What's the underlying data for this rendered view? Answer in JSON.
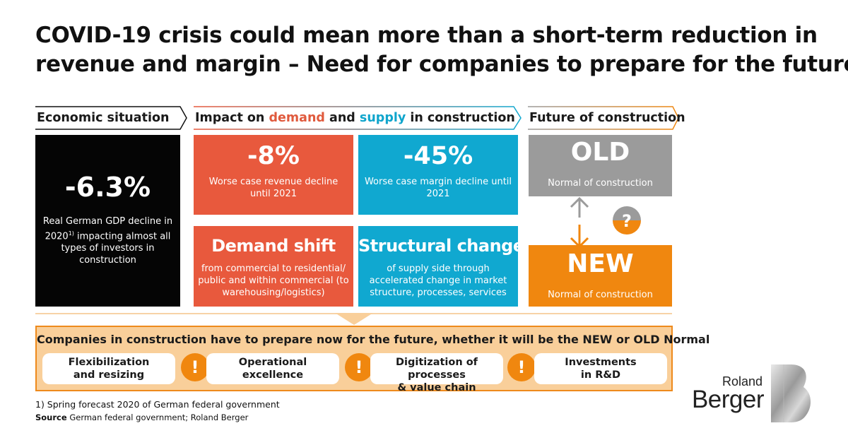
{
  "title": {
    "line1": "COVID-19 crisis could mean more than a short-term reduction in",
    "line2": "revenue and margin – Need for companies to prepare for the future"
  },
  "headers": {
    "economic": "Economic situation",
    "impact_pre": "Impact on ",
    "impact_demand": "demand",
    "impact_and": " and ",
    "impact_supply": "supply",
    "impact_post": " in construction",
    "future": "Future of construction"
  },
  "economic_box": {
    "value": "-6.3%",
    "desc_a": "Real German GDP decline in 2020",
    "desc_sup": "1)",
    "desc_b": " impacting almost all types of investors in construction"
  },
  "revenue_box": {
    "value": "-8%",
    "desc": "Worse case revenue decline until 2021"
  },
  "margin_box": {
    "value": "-45%",
    "desc": "Worse case margin decline until 2021"
  },
  "demand_box": {
    "value": "Demand shift",
    "desc": "from commercial to residential/ public and within commercial (to warehousing/logistics)"
  },
  "structural_box": {
    "value": "Structural change",
    "desc": "of supply side through accelerated change in market structure, processes, services"
  },
  "old_box": {
    "value": "OLD",
    "desc": "Normal of construction"
  },
  "new_box": {
    "value": "NEW",
    "desc": "Normal of construction"
  },
  "question_mark": "?",
  "panel": {
    "title": "Companies in construction have to prepare now for the future, whether it will be the NEW or OLD Normal",
    "items": [
      {
        "line1": "Flexibilization",
        "line2": "and resizing"
      },
      {
        "line1": "Operational",
        "line2": "excellence"
      },
      {
        "line1": "Digitization of processes",
        "line2": "& value chain"
      },
      {
        "line1": "Investments",
        "line2": "in R&D"
      }
    ],
    "exclamation": "!"
  },
  "footnote": "1) Spring forecast 2020 of German federal government",
  "source": {
    "label": "Source",
    "text": " German federal government; Roland Berger"
  },
  "logo": {
    "line1": "Roland",
    "line2": "Berger"
  },
  "colors": {
    "red": "#e8593d",
    "blue": "#10a8d0",
    "orange": "#f0870f",
    "grey": "#9b9b9b",
    "black": "#050505",
    "panel_bg": "#f9cf9a"
  }
}
